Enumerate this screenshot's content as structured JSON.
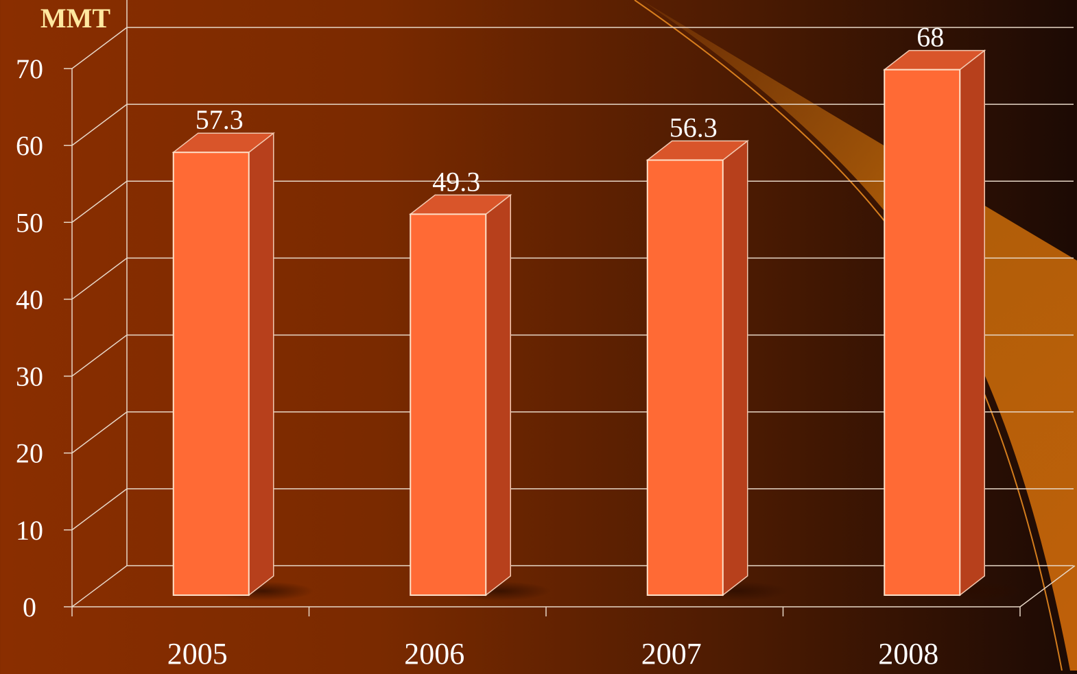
{
  "chart_data": {
    "type": "bar",
    "title": "",
    "ylabel": "MMT",
    "xlabel": "",
    "categories": [
      "2005",
      "2006",
      "2007",
      "2008"
    ],
    "series": [
      {
        "values": [
          57.3,
          49.3,
          56.3,
          68
        ]
      }
    ],
    "data_labels": [
      "57.3",
      "49.3",
      "56.3",
      "68"
    ],
    "y_ticks": [
      "0",
      "10",
      "20",
      "30",
      "40",
      "50",
      "60",
      "70"
    ],
    "ylim": [
      0,
      70
    ],
    "grid": true,
    "style": "3d-column",
    "colors": {
      "bar_front": "#ff6a35",
      "bar_side": "#b7401c",
      "bar_top": "#d9552a",
      "text": "#ffffff",
      "ylabel": "#ffe8a0",
      "grid": "#e8d8c8"
    }
  }
}
